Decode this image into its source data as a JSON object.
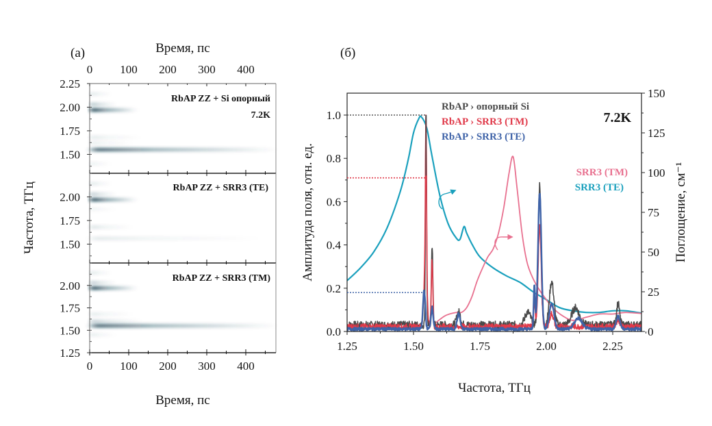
{
  "chart_data": [
    {
      "panel_label": "(a)",
      "type": "heatmap",
      "title": "",
      "xlabel": "Время, пс",
      "ylabel": "Частота, ТГц",
      "xlim": [
        0,
        480
      ],
      "x_ticks": [
        0,
        100,
        200,
        300,
        400
      ],
      "colormap": [
        "#ffffff",
        "#0d3b4c"
      ],
      "subplots": [
        {
          "label": "RbAP ZZ + Si опорный",
          "label_color": "#6b6b6b",
          "annotation": "7.2K",
          "ylim": [
            1.3,
            2.25
          ],
          "y_ticks": [
            1.5,
            1.75,
            2.0,
            2.25
          ],
          "bands": [
            {
              "freq": 1.97,
              "intensity": 1.0,
              "decay_ps": 55
            },
            {
              "freq": 2.03,
              "intensity": 0.35,
              "decay_ps": 30
            },
            {
              "freq": 2.14,
              "intensity": 0.15,
              "decay_ps": 25
            },
            {
              "freq": 1.68,
              "intensity": 0.12,
              "decay_ps": 60
            },
            {
              "freq": 1.55,
              "intensity": 0.8,
              "decay_ps": 400
            },
            {
              "freq": 1.62,
              "intensity": 0.1,
              "decay_ps": 50
            },
            {
              "freq": 1.4,
              "intensity": 0.1,
              "decay_ps": 25
            }
          ]
        },
        {
          "label": "RbAP ZZ + SRR3 (TE)",
          "label_color": "#e03a4a",
          "annotation": "",
          "ylim": [
            1.3,
            2.25
          ],
          "y_ticks": [
            1.5,
            1.75,
            2.0
          ],
          "bands": [
            {
              "freq": 1.97,
              "intensity": 1.0,
              "decay_ps": 55
            },
            {
              "freq": 2.03,
              "intensity": 0.3,
              "decay_ps": 30
            },
            {
              "freq": 2.14,
              "intensity": 0.15,
              "decay_ps": 25
            },
            {
              "freq": 1.68,
              "intensity": 0.15,
              "decay_ps": 50
            },
            {
              "freq": 1.56,
              "intensity": 0.12,
              "decay_ps": 200
            },
            {
              "freq": 1.87,
              "intensity": 0.08,
              "decay_ps": 30
            }
          ]
        },
        {
          "label": "RbAP ZZ + SRR3 (TM)",
          "label_color": "#3f63a8",
          "annotation": "",
          "ylim": [
            1.25,
            2.25
          ],
          "y_ticks": [
            1.25,
            1.5,
            1.75,
            2.0
          ],
          "bands": [
            {
              "freq": 1.97,
              "intensity": 1.0,
              "decay_ps": 55
            },
            {
              "freq": 2.03,
              "intensity": 0.3,
              "decay_ps": 30
            },
            {
              "freq": 2.14,
              "intensity": 0.15,
              "decay_ps": 25
            },
            {
              "freq": 1.68,
              "intensity": 0.12,
              "decay_ps": 50
            },
            {
              "freq": 1.55,
              "intensity": 0.8,
              "decay_ps": 380
            },
            {
              "freq": 1.6,
              "intensity": 0.25,
              "decay_ps": 60
            },
            {
              "freq": 1.45,
              "intensity": 0.12,
              "decay_ps": 30
            }
          ]
        }
      ]
    },
    {
      "panel_label": "(б)",
      "type": "line",
      "title": "",
      "annotation": "7.2K",
      "xlabel": "Частота, ТГц",
      "ylabel": "Амплитуда поля, отн. ед.",
      "y2label": "Поглощение, см⁻¹",
      "xlim": [
        1.25,
        2.38
      ],
      "ylim": [
        0,
        1.1
      ],
      "y2lim": [
        0,
        150
      ],
      "x_ticks": [
        1.25,
        1.5,
        1.75,
        2.0,
        2.25
      ],
      "y_ticks": [
        0.0,
        0.2,
        0.4,
        0.6,
        0.8,
        1.0
      ],
      "y2_ticks": [
        0,
        25,
        50,
        75,
        100,
        125,
        150
      ],
      "legend_position": "top-center",
      "legend": [
        {
          "name": "RbAP › опорный Si",
          "color": "#4a4a4a"
        },
        {
          "name": "RbAP › SRR3 (TM)",
          "color": "#e03a4a"
        },
        {
          "name": "RbAP › SRR3 (TE)",
          "color": "#3f63a8"
        }
      ],
      "legend2": [
        {
          "name": "SRR3 (TM)",
          "color": "#e8708f"
        },
        {
          "name": "SRR3 (TE)",
          "color": "#1aa0bd"
        }
      ],
      "reference_levels": [
        {
          "series": "RbAP › опорный Si",
          "value": 1.0,
          "color": "#555555"
        },
        {
          "series": "RbAP › SRR3 (TM)",
          "value": 0.71,
          "color": "#e03a4a"
        },
        {
          "series": "RbAP › SRR3 (TE)",
          "value": 0.18,
          "color": "#3f63a8"
        }
      ],
      "series": [
        {
          "name": "RbAP › опорный Si",
          "axis": "left",
          "color": "#4a4a4a",
          "noise": 0.04,
          "peaks": [
            [
              1.547,
              1.0,
              0.003
            ],
            [
              1.57,
              0.37,
              0.004
            ],
            [
              1.67,
              0.06,
              0.01
            ],
            [
              1.975,
              0.65,
              0.008
            ],
            [
              2.02,
              0.2,
              0.012
            ],
            [
              2.11,
              0.08,
              0.02
            ],
            [
              2.27,
              0.1,
              0.008
            ],
            [
              1.93,
              0.06,
              0.015
            ]
          ]
        },
        {
          "name": "RbAP › SRR3 (TM)",
          "axis": "left",
          "color": "#e03a4a",
          "noise": 0.03,
          "peaks": [
            [
              1.547,
              0.71,
              0.003
            ],
            [
              1.545,
              0.3,
              0.008
            ],
            [
              1.57,
              0.31,
              0.004
            ],
            [
              1.975,
              0.46,
              0.008
            ],
            [
              1.955,
              0.1,
              0.005
            ],
            [
              2.02,
              0.06,
              0.01
            ],
            [
              2.27,
              0.03,
              0.01
            ]
          ]
        },
        {
          "name": "RbAP › SRR3 (TE)",
          "axis": "left",
          "color": "#3f63a8",
          "noise": 0.015,
          "peaks": [
            [
              1.54,
              0.18,
              0.006
            ],
            [
              1.57,
              0.1,
              0.006
            ],
            [
              1.67,
              0.07,
              0.008
            ],
            [
              1.975,
              0.63,
              0.009
            ],
            [
              1.955,
              0.2,
              0.004
            ],
            [
              2.02,
              0.12,
              0.012
            ],
            [
              2.12,
              0.05,
              0.02
            ],
            [
              2.27,
              0.06,
              0.01
            ]
          ]
        },
        {
          "name": "SRR3 (TE)",
          "axis": "right",
          "color": "#1aa0bd",
          "x": [
            1.25,
            1.3,
            1.35,
            1.4,
            1.45,
            1.48,
            1.5,
            1.52,
            1.53,
            1.55,
            1.57,
            1.6,
            1.63,
            1.66,
            1.675,
            1.69,
            1.7,
            1.72,
            1.75,
            1.8,
            1.85,
            1.9,
            1.95,
            2.0,
            2.05,
            2.1,
            2.15,
            2.2,
            2.25,
            2.3,
            2.38
          ],
          "y": [
            32,
            40,
            50,
            65,
            88,
            108,
            125,
            134,
            135,
            128,
            110,
            85,
            68,
            59,
            58,
            66,
            62,
            55,
            47,
            40,
            35,
            31,
            25,
            20,
            15,
            13,
            12,
            12,
            13,
            13,
            11
          ]
        },
        {
          "name": "SRR3 (TM)",
          "axis": "right",
          "color": "#e8708f",
          "x": [
            1.58,
            1.62,
            1.66,
            1.68,
            1.7,
            1.72,
            1.74,
            1.76,
            1.78,
            1.8,
            1.82,
            1.84,
            1.86,
            1.875,
            1.89,
            1.91,
            1.93,
            1.96,
            2.0,
            2.03,
            2.06,
            2.1,
            2.15,
            2.2,
            2.25,
            2.3,
            2.38
          ],
          "y": [
            5,
            10,
            12,
            12,
            15,
            22,
            32,
            40,
            47,
            52,
            62,
            78,
            100,
            110,
            90,
            60,
            42,
            30,
            20,
            14,
            10,
            7,
            9,
            11,
            11,
            12,
            11
          ]
        }
      ]
    }
  ]
}
